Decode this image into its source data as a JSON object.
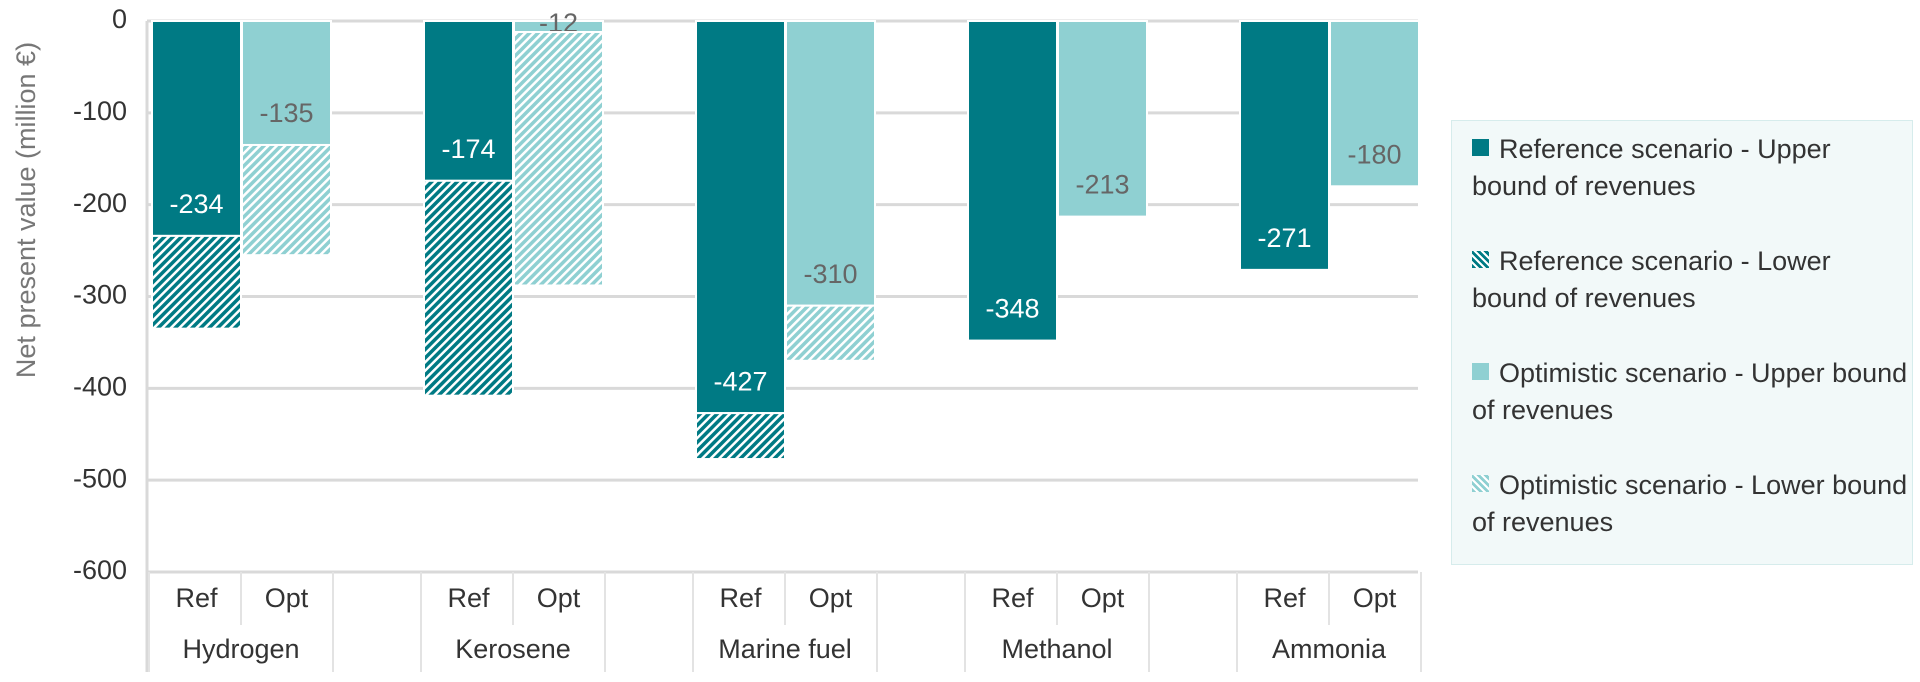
{
  "chart_data": {
    "type": "bar",
    "y_label": "Net present value (million €)",
    "categories": [
      "Hydrogen",
      "Kerosene",
      "Marine fuel",
      "Methanol",
      "Ammonia"
    ],
    "sub_categories": [
      "Ref",
      "Opt"
    ],
    "series": [
      {
        "name": "Reference scenario - Upper bound of revenues",
        "color": "#007a84",
        "pattern": "solid",
        "values": [
          -234,
          -174,
          -427,
          -348,
          -271
        ]
      },
      {
        "name": "Reference scenario - Lower bound of revenues",
        "color": "#007a84",
        "pattern": "hatch",
        "values": [
          -101,
          -234,
          -50,
          null,
          null
        ]
      },
      {
        "name": "Optimistic scenario - Upper bound of revenues",
        "color": "#8fd0d2",
        "pattern": "solid",
        "values": [
          -135,
          -12,
          -310,
          -213,
          -180
        ]
      },
      {
        "name": "Optimistic scenario - Lower bound of revenues",
        "color": "#8fd0d2",
        "pattern": "hatch",
        "values": [
          -120,
          -276,
          -60,
          null,
          null
        ]
      }
    ],
    "ylim": [
      -600,
      0
    ],
    "yticks": [
      0,
      -100,
      -200,
      -300,
      -400,
      -500,
      -600
    ],
    "grid": true
  }
}
